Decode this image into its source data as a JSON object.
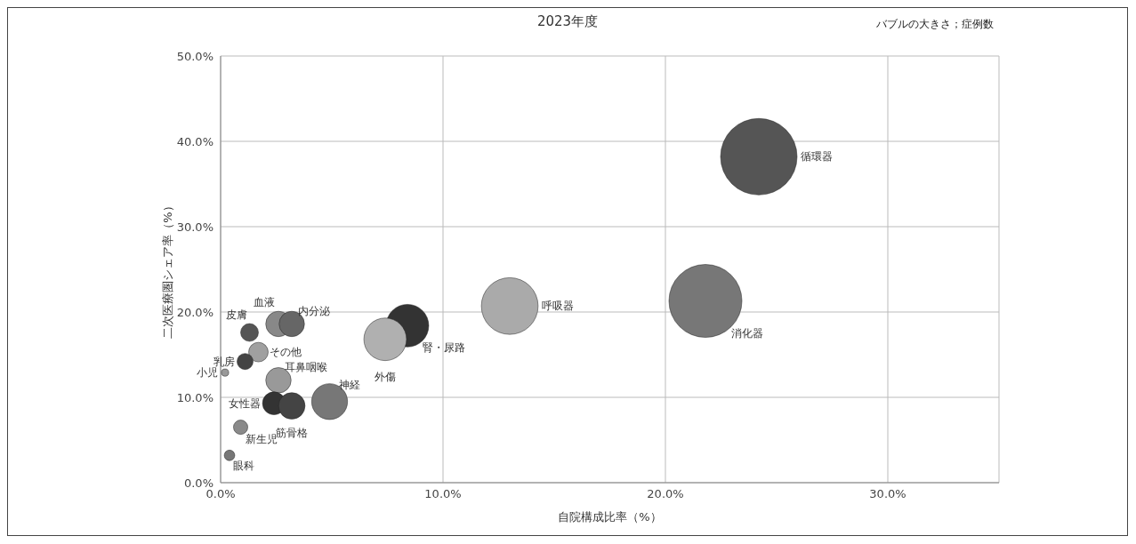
{
  "chart_data": {
    "type": "bubble",
    "title": "2023年度",
    "xlabel": "自院構成比率（%）",
    "ylabel": "二次医療圏シェア率（%）",
    "annotations": [
      "バブルの大きさ；症例数"
    ],
    "xlim": [
      0,
      35
    ],
    "xticks": [
      {
        "value": 0,
        "label": "0.0%"
      },
      {
        "value": 10,
        "label": "10.0%"
      },
      {
        "value": 20,
        "label": "20.0%"
      },
      {
        "value": 30,
        "label": "30.0%"
      }
    ],
    "ylim": [
      0,
      50
    ],
    "yticks": [
      {
        "value": 0,
        "label": "0.0%"
      },
      {
        "value": 10,
        "label": "10.0%"
      },
      {
        "value": 20,
        "label": "20.0%"
      },
      {
        "value": 30,
        "label": "30.0%"
      },
      {
        "value": 40,
        "label": "40.0%"
      },
      {
        "value": 50,
        "label": "50.0%"
      }
    ],
    "grid": true,
    "series": [
      {
        "name": "循環器",
        "color": "#555555",
        "x": [
          24.2
        ],
        "values": [
          38.2
        ],
        "sizes": [
          1
        ]
      },
      {
        "name": "消化器",
        "color": "#777777",
        "x": [
          21.8
        ],
        "values": [
          21.3
        ],
        "sizes": [
          0.91
        ]
      },
      {
        "name": "呼吸器",
        "color": "#aaaaaa",
        "x": [
          13.0
        ],
        "values": [
          20.7
        ],
        "sizes": [
          0.55
        ]
      },
      {
        "name": "腎・尿路",
        "color": "#333333",
        "x": [
          8.4
        ],
        "values": [
          18.4
        ],
        "sizes": [
          0.31
        ]
      },
      {
        "name": "外傷",
        "color": "#b0b0b0",
        "x": [
          7.4
        ],
        "values": [
          16.8
        ],
        "sizes": [
          0.31
        ]
      },
      {
        "name": "血液",
        "color": "#888888",
        "x": [
          2.6
        ],
        "values": [
          18.6
        ],
        "sizes": [
          0.11
        ]
      },
      {
        "name": "内分泌",
        "color": "#666666",
        "x": [
          3.2
        ],
        "values": [
          18.6
        ],
        "sizes": [
          0.11
        ]
      },
      {
        "name": "皮膚",
        "color": "#555555",
        "x": [
          1.3
        ],
        "values": [
          17.6
        ],
        "sizes": [
          0.054
        ]
      },
      {
        "name": "その他",
        "color": "#a0a0a0",
        "x": [
          1.7
        ],
        "values": [
          15.3
        ],
        "sizes": [
          0.065
        ]
      },
      {
        "name": "乳房",
        "color": "#444444",
        "x": [
          1.1
        ],
        "values": [
          14.2
        ],
        "sizes": [
          0.044
        ]
      },
      {
        "name": "小児",
        "color": "#999999",
        "x": [
          0.2
        ],
        "values": [
          12.9
        ],
        "sizes": [
          0.009
        ]
      },
      {
        "name": "耳鼻咽喉",
        "color": "#999999",
        "x": [
          2.6
        ],
        "values": [
          12.0
        ],
        "sizes": [
          0.11
        ]
      },
      {
        "name": "神経",
        "color": "#777777",
        "x": [
          4.9
        ],
        "values": [
          9.5
        ],
        "sizes": [
          0.22
        ]
      },
      {
        "name": "女性器",
        "color": "#333333",
        "x": [
          2.4
        ],
        "values": [
          9.3
        ],
        "sizes": [
          0.09
        ]
      },
      {
        "name": "筋骨格",
        "color": "#444444",
        "x": [
          3.2
        ],
        "values": [
          9.0
        ],
        "sizes": [
          0.12
        ]
      },
      {
        "name": "新生児",
        "color": "#8a8a8a",
        "x": [
          0.9
        ],
        "values": [
          6.5
        ],
        "sizes": [
          0.035
        ]
      },
      {
        "name": "眼科",
        "color": "#777777",
        "x": [
          0.4
        ],
        "values": [
          3.2
        ],
        "sizes": [
          0.019
        ]
      }
    ]
  }
}
